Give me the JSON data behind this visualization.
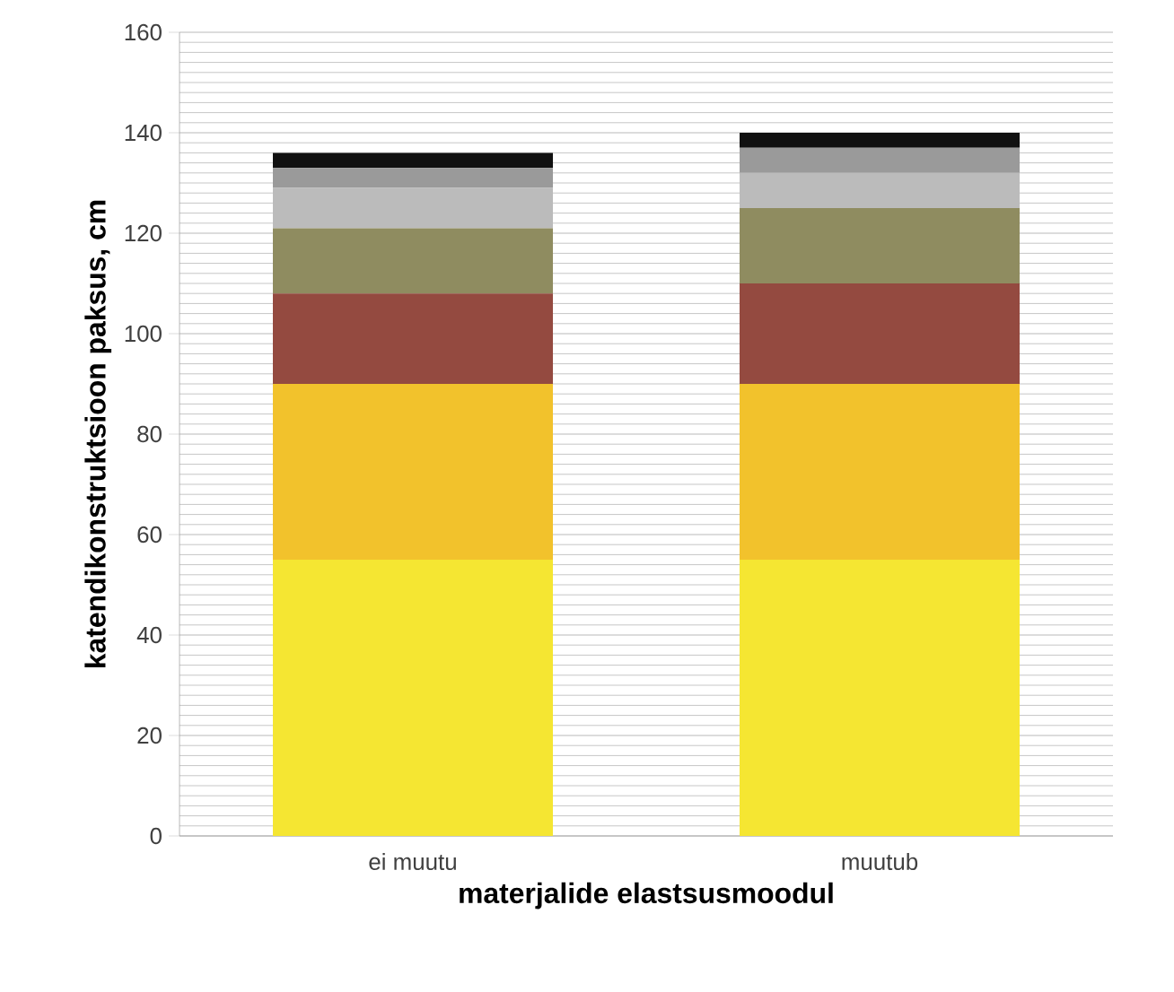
{
  "chart_data": {
    "type": "bar",
    "stacked": true,
    "xlabel": "materjalide elastsusmoodul",
    "ylabel": "katendikonstruktsioon paksus, cm",
    "categories": [
      "ei muutu",
      "muutub"
    ],
    "series": [
      {
        "color": "#f5e632",
        "values": [
          55,
          55
        ]
      },
      {
        "color": "#f2c22c",
        "values": [
          35,
          35
        ]
      },
      {
        "color": "#944a40",
        "values": [
          18,
          20
        ]
      },
      {
        "color": "#8f8c60",
        "values": [
          13,
          15
        ]
      },
      {
        "color": "#bbbbbb",
        "values": [
          8,
          7
        ]
      },
      {
        "color": "#9a9a9a",
        "values": [
          4,
          5
        ]
      },
      {
        "color": "#111111",
        "values": [
          3,
          3
        ]
      }
    ],
    "ylim": [
      0,
      160
    ],
    "yticks": [
      0,
      20,
      40,
      60,
      80,
      100,
      120,
      140,
      160
    ],
    "grid": "y"
  }
}
